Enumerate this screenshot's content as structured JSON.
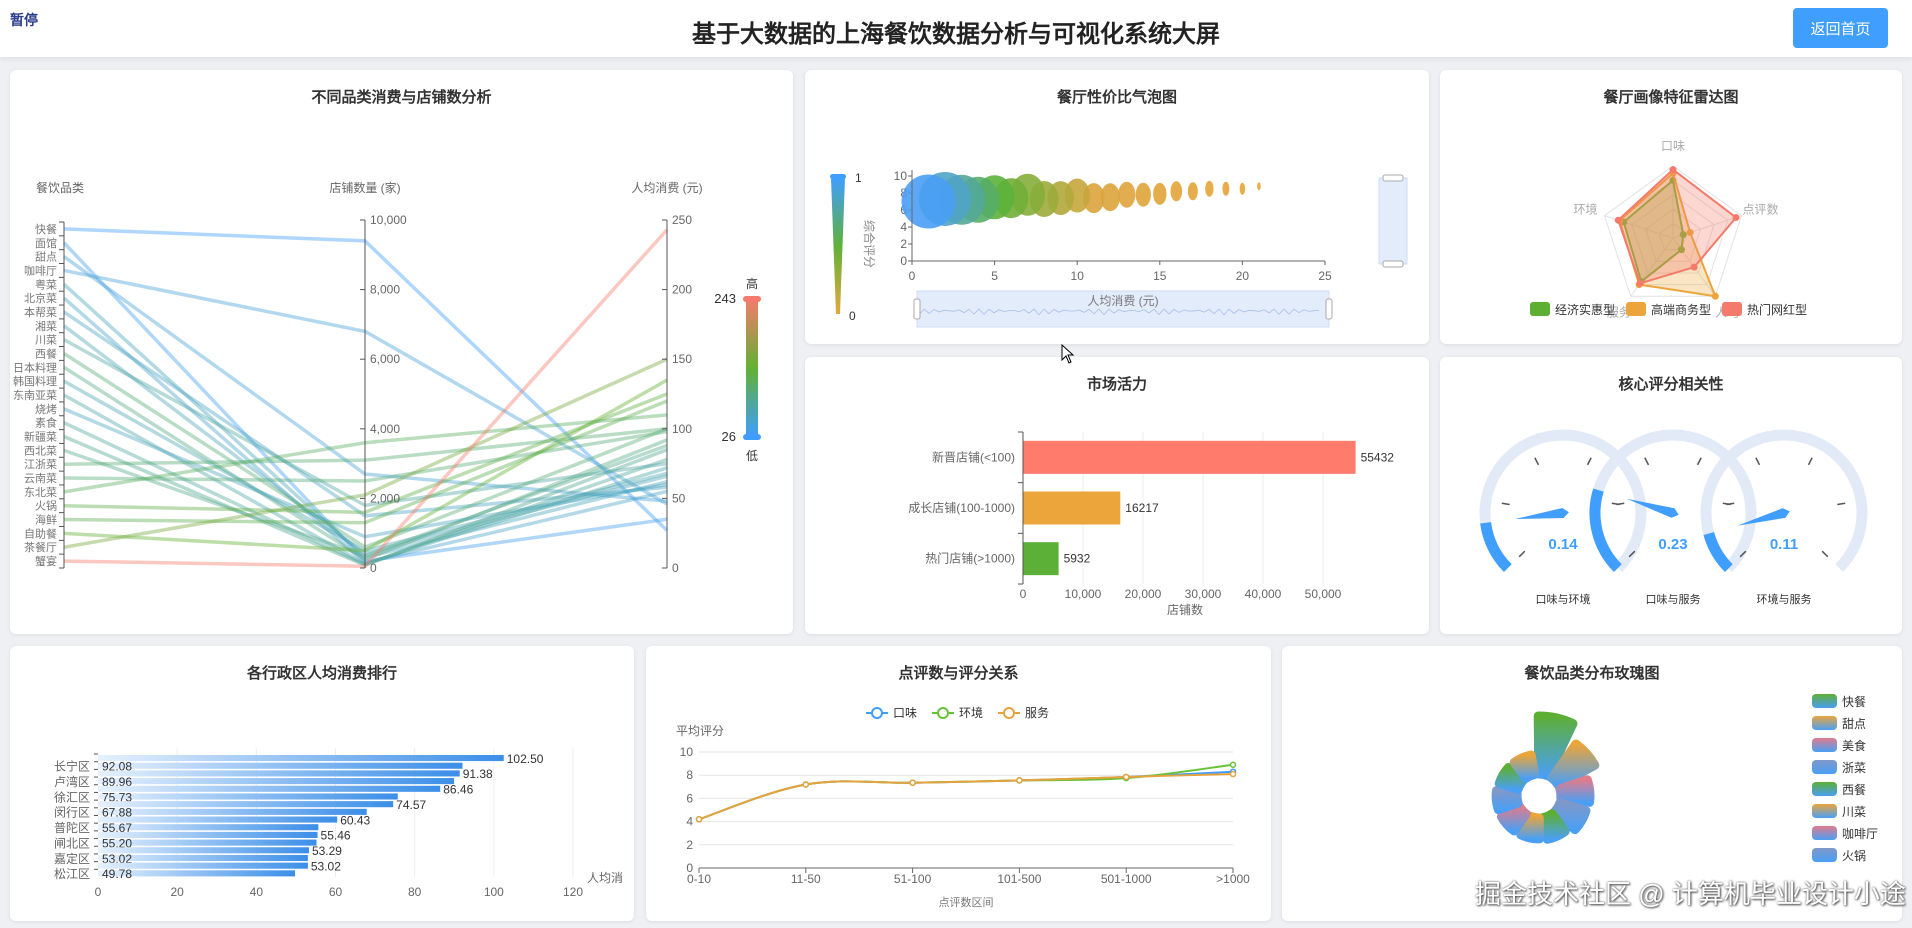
{
  "header": {
    "title": "基于大数据的上海餐饮数据分析与可视化系统大屏",
    "pause_label": "暂停",
    "home_label": "返回首页"
  },
  "watermark": "掘金技术社区 @ 计算机毕业设计小途",
  "chart_data": [
    {
      "id": "parallel",
      "type": "parallel",
      "title": "不同品类消费与店铺数分析",
      "axes": [
        "餐饮品类",
        "店铺数量 (家)",
        "人均消费 (元)"
      ],
      "store_range": [
        0,
        10000
      ],
      "price_range": [
        0,
        250
      ],
      "visual_map": {
        "min": 26,
        "max": 243,
        "high_label": "高",
        "low_label": "低",
        "colors": [
          "#409eff",
          "#62b133",
          "#f47b6b"
        ]
      },
      "rows": [
        [
          "快餐",
          9400,
          27
        ],
        [
          "面馆",
          200,
          35
        ],
        [
          "甜点",
          2700,
          48
        ],
        [
          "咖啡厅",
          6800,
          46
        ],
        [
          "粤菜",
          300,
          62
        ],
        [
          "北京菜",
          150,
          55
        ],
        [
          "本帮菜",
          1500,
          58
        ],
        [
          "湘菜",
          400,
          66
        ],
        [
          "川菜",
          1800,
          75
        ],
        [
          "西餐",
          600,
          100
        ],
        [
          "日本料理",
          250,
          92
        ],
        [
          "韩国料理",
          500,
          68
        ],
        [
          "东南亚菜",
          120,
          72
        ],
        [
          "烧烤",
          900,
          60
        ],
        [
          "素食",
          100,
          78
        ],
        [
          "新疆菜",
          80,
          85
        ],
        [
          "西北菜",
          350,
          88
        ],
        [
          "江浙菜",
          3100,
          100
        ],
        [
          "云南菜",
          2500,
          98
        ],
        [
          "东北菜",
          3600,
          110
        ],
        [
          "火锅",
          1600,
          125
        ],
        [
          "海鲜",
          1300,
          120
        ],
        [
          "自助餐",
          500,
          135
        ],
        [
          "茶餐厅",
          2100,
          150
        ],
        [
          "蟹宴",
          50,
          243
        ]
      ]
    },
    {
      "id": "bubble",
      "type": "scatter",
      "title": "餐厅性价比气泡图",
      "xlabel": "人均消费 (元)",
      "ylabel": "综合评分",
      "xlim": [
        0,
        25
      ],
      "ylim": [
        0,
        10
      ],
      "xticks": [
        0,
        5,
        10,
        15,
        20,
        25
      ],
      "yticks": [
        0,
        2,
        4,
        6,
        8,
        10
      ],
      "visual_map": {
        "min": "0",
        "max": "1"
      },
      "points": [
        [
          1,
          7.0,
          27
        ],
        [
          2,
          7.3,
          27
        ],
        [
          3,
          7.2,
          25
        ],
        [
          4,
          7.2,
          23
        ],
        [
          5,
          7.5,
          22
        ],
        [
          6,
          7.4,
          20
        ],
        [
          7,
          7.8,
          21
        ],
        [
          8,
          7.3,
          18
        ],
        [
          9,
          7.4,
          17
        ],
        [
          10,
          7.7,
          17
        ],
        [
          11,
          7.4,
          15
        ],
        [
          12,
          7.5,
          14
        ],
        [
          13,
          7.8,
          13
        ],
        [
          14,
          7.8,
          12
        ],
        [
          15,
          7.9,
          11
        ],
        [
          16,
          8.2,
          10
        ],
        [
          17,
          8.2,
          9
        ],
        [
          18,
          8.5,
          8
        ],
        [
          19,
          8.5,
          7
        ],
        [
          20,
          8.5,
          6
        ],
        [
          21,
          8.8,
          4
        ]
      ]
    },
    {
      "id": "radar",
      "type": "radar",
      "title": "餐厅画像特征雷达图",
      "indicators": [
        "口味",
        "点评数",
        "人均",
        "服务",
        "环境"
      ],
      "series": [
        {
          "name": "经济实惠型",
          "color": "#5daf34",
          "values": [
            0.8,
            0.15,
            0.2,
            0.75,
            0.72
          ]
        },
        {
          "name": "高端商务型",
          "color": "#eba53a",
          "values": [
            0.9,
            0.25,
            1.0,
            0.8,
            0.78
          ]
        },
        {
          "name": "热门网红型",
          "color": "#f47b6b",
          "values": [
            0.95,
            0.92,
            0.5,
            0.78,
            0.8
          ]
        }
      ]
    },
    {
      "id": "market",
      "type": "bar",
      "title": "市场活力",
      "categories": [
        "新晋店铺(<100)",
        "成长店铺(100-1000)",
        "热门店铺(>1000)"
      ],
      "values": [
        55432,
        16217,
        5932
      ],
      "colors": [
        "#ff7b6b",
        "#eba53a",
        "#5db037"
      ],
      "xlabel": "店铺数",
      "xlim": [
        0,
        55432
      ],
      "xticks": [
        "0",
        "10,000",
        "20,000",
        "30,000",
        "40,000",
        "50,000"
      ]
    },
    {
      "id": "gauges",
      "type": "gauge",
      "title": "核心评分相关性",
      "range": [
        0,
        1
      ],
      "items": [
        {
          "name": "口味与环境",
          "value": 0.14
        },
        {
          "name": "口味与服务",
          "value": 0.23
        },
        {
          "name": "环境与服务",
          "value": 0.11
        }
      ]
    },
    {
      "id": "district",
      "type": "bar",
      "title": "各行政区人均消费排行",
      "xlabel": "人均消",
      "xlim": [
        0,
        120
      ],
      "xticks": [
        0,
        20,
        40,
        60,
        80,
        100,
        120
      ],
      "categories": [
        "",
        "长宁区",
        "",
        "卢湾区",
        "",
        "徐汇区",
        "",
        "闵行区",
        "",
        "普陀区",
        "",
        "闸北区",
        "",
        "嘉定区",
        "",
        "松江区"
      ],
      "values": [
        "102.50",
        "92.08",
        "91.38",
        "89.96",
        "86.46",
        "75.73",
        "74.57",
        "67.88",
        "60.43",
        "55.67",
        "55.46",
        "55.20",
        "53.29",
        "53.02",
        "53.02",
        "49.78"
      ]
    },
    {
      "id": "line",
      "type": "line",
      "title": "点评数与评分关系",
      "xlabel": "点评数区间",
      "ylabel": "平均评分",
      "ylim": [
        0,
        10
      ],
      "yticks": [
        0,
        2,
        4,
        6,
        8,
        10
      ],
      "categories": [
        "0-10",
        "11-50",
        "51-100",
        "101-500",
        "501-1000",
        ">1000"
      ],
      "series": [
        {
          "name": "口味",
          "color": "#409eff",
          "values": [
            4.2,
            7.2,
            7.35,
            7.55,
            7.85,
            8.3
          ]
        },
        {
          "name": "环境",
          "color": "#67c23a",
          "values": [
            4.2,
            7.2,
            7.35,
            7.55,
            7.75,
            8.9
          ]
        },
        {
          "name": "服务",
          "color": "#e6a23c",
          "values": [
            4.2,
            7.2,
            7.35,
            7.55,
            7.85,
            8.1
          ]
        }
      ]
    },
    {
      "id": "rose",
      "type": "pie",
      "title": "餐饮品类分布玫瑰图",
      "legend": [
        "快餐",
        "甜点",
        "美食",
        "浙菜",
        "西餐",
        "川菜",
        "咖啡厅",
        "火锅"
      ],
      "slices": [
        {
          "name": "快餐",
          "value": 100,
          "color": "#5daf34"
        },
        {
          "name": "甜点",
          "value": 72,
          "color": "#eba53a"
        },
        {
          "name": "美食",
          "value": 50,
          "color": "#e07c8c"
        },
        {
          "name": "浙菜",
          "value": 47,
          "color": "#7f98c9"
        },
        {
          "name": "西餐",
          "value": 38,
          "color": "#5daf34"
        },
        {
          "name": "川菜",
          "value": 36,
          "color": "#eba53a"
        },
        {
          "name": "咖啡厅",
          "value": 36,
          "color": "#e07c8c"
        },
        {
          "name": "火锅",
          "value": 36,
          "color": "#7f98c9"
        },
        {
          "name": "",
          "value": 34,
          "color": "#5daf34"
        },
        {
          "name": "",
          "value": 34,
          "color": "#eba53a"
        }
      ]
    }
  ]
}
